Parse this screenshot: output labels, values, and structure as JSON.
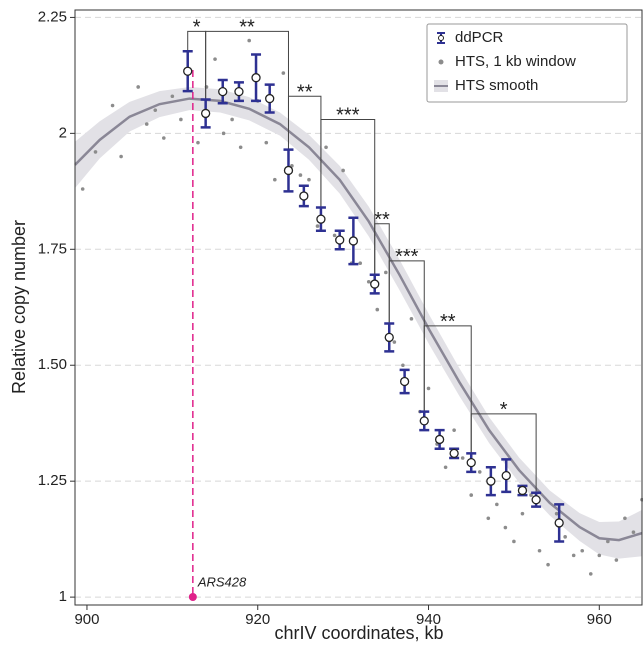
{
  "chart_data": {
    "type": "scatter",
    "x_label": "chrIV coordinates, kb",
    "y_label": "Relative copy number",
    "xlim": [
      898.6,
      965
    ],
    "ylim": [
      0.983,
      2.266
    ],
    "xticks": [
      900,
      920,
      940,
      960
    ],
    "yticks": [
      1,
      1.25,
      {
        "value": 1.5,
        "label": "1.50"
      },
      1.75,
      2,
      2.25
    ],
    "grid": true,
    "legend": "top-right",
    "series": [
      {
        "name": "ddPCR",
        "color": "#2e3192",
        "x": [
          911.8,
          913.9,
          915.9,
          917.8,
          919.8,
          921.4,
          923.6,
          925.4,
          927.4,
          929.6,
          931.2,
          933.7,
          935.4,
          937.2,
          939.5,
          941.3,
          943.0,
          945.0,
          947.3,
          949.1,
          951.0,
          952.6,
          955.3
        ],
        "values": [
          2.134,
          2.043,
          2.09,
          2.09,
          2.12,
          2.075,
          1.92,
          1.865,
          1.815,
          1.77,
          1.768,
          1.675,
          1.56,
          1.465,
          1.38,
          1.34,
          1.31,
          1.29,
          1.25,
          1.262,
          1.23,
          1.21,
          1.16
        ],
        "errors": [
          0.043,
          0.03,
          0.025,
          0.02,
          0.05,
          0.03,
          0.045,
          0.022,
          0.025,
          0.02,
          0.05,
          0.02,
          0.03,
          0.025,
          0.02,
          0.02,
          0.01,
          0.02,
          0.03,
          0.035,
          0.01,
          0.015,
          0.04
        ]
      },
      {
        "name": "HTS, 1 kb window",
        "color": "#8c8c8c",
        "x": [
          899.5,
          901,
          903,
          904,
          906,
          907,
          908,
          909,
          910,
          911,
          913,
          914,
          915,
          916,
          917,
          918,
          919,
          920,
          921,
          922,
          923,
          924,
          925,
          926,
          927,
          928,
          929,
          930,
          931,
          932,
          933,
          934,
          935,
          936,
          937,
          938,
          939,
          940,
          941,
          942,
          943,
          944,
          945,
          946,
          947,
          948,
          949,
          950,
          951,
          952,
          953,
          954,
          955,
          956,
          957,
          958,
          959,
          960,
          961,
          962,
          963,
          964,
          965
        ],
        "values": [
          1.88,
          1.96,
          2.06,
          1.95,
          2.1,
          2.02,
          2.05,
          1.99,
          2.08,
          2.03,
          1.98,
          2.1,
          2.16,
          2.0,
          2.03,
          1.97,
          2.2,
          2.07,
          1.98,
          1.9,
          2.13,
          1.93,
          1.91,
          1.9,
          1.8,
          1.97,
          1.78,
          1.92,
          1.72,
          1.72,
          1.68,
          1.62,
          1.7,
          1.55,
          1.5,
          1.6,
          1.4,
          1.45,
          1.33,
          1.28,
          1.36,
          1.3,
          1.22,
          1.27,
          1.17,
          1.2,
          1.15,
          1.12,
          1.18,
          1.22,
          1.1,
          1.07,
          1.18,
          1.13,
          1.09,
          1.1,
          1.05,
          1.09,
          1.12,
          1.08,
          1.17,
          1.14,
          1.21
        ]
      },
      {
        "name": "HTS smooth",
        "color": "#8a8796",
        "band_color": "#e2e1e6",
        "x": [
          898.6,
          901.5,
          905,
          908.5,
          912,
          915.6,
          919,
          922.6,
          926,
          929.6,
          933,
          936.6,
          940.1,
          943.6,
          947.1,
          950.6,
          954.2,
          957.7,
          960,
          962.3,
          965
        ],
        "values": [
          1.932,
          1.986,
          2.036,
          2.063,
          2.075,
          2.07,
          2.053,
          2.02,
          1.97,
          1.9,
          1.81,
          1.695,
          1.576,
          1.464,
          1.36,
          1.274,
          1.203,
          1.151,
          1.127,
          1.123,
          1.138
        ],
        "ci": [
          0.05,
          0.04,
          0.032,
          0.028,
          0.025,
          0.025,
          0.025,
          0.025,
          0.027,
          0.03,
          0.032,
          0.033,
          0.032,
          0.03,
          0.028,
          0.027,
          0.027,
          0.03,
          0.035,
          0.04,
          0.05
        ]
      }
    ],
    "brackets": [
      {
        "label": "*",
        "x": [
          911.8,
          913.9
        ],
        "y": 2.22,
        "ends": [
          2.177,
          2.073
        ]
      },
      {
        "label": "**",
        "x": [
          913.9,
          923.6
        ],
        "y": 2.22,
        "ends": [
          2.073,
          1.965
        ]
      },
      {
        "label": "**",
        "x": [
          923.6,
          927.4
        ],
        "y": 2.08,
        "ends": [
          1.965,
          1.84
        ]
      },
      {
        "label": "***",
        "x": [
          927.4,
          933.7
        ],
        "y": 2.03,
        "ends": [
          1.84,
          1.695
        ]
      },
      {
        "label": "**",
        "x": [
          933.7,
          935.4
        ],
        "y": 1.805,
        "ends": [
          1.695,
          1.59
        ]
      },
      {
        "label": "***",
        "x": [
          935.4,
          939.5
        ],
        "y": 1.725,
        "ends": [
          1.59,
          1.4
        ]
      },
      {
        "label": "**",
        "x": [
          939.5,
          945.0
        ],
        "y": 1.585,
        "ends": [
          1.4,
          1.31
        ]
      },
      {
        "label": "*",
        "x": [
          945.0,
          952.6
        ],
        "y": 1.395,
        "ends": [
          1.31,
          1.225
        ]
      }
    ],
    "marker_line": {
      "label": "ARS428",
      "x": 912.4,
      "color": "#e0218a"
    }
  }
}
